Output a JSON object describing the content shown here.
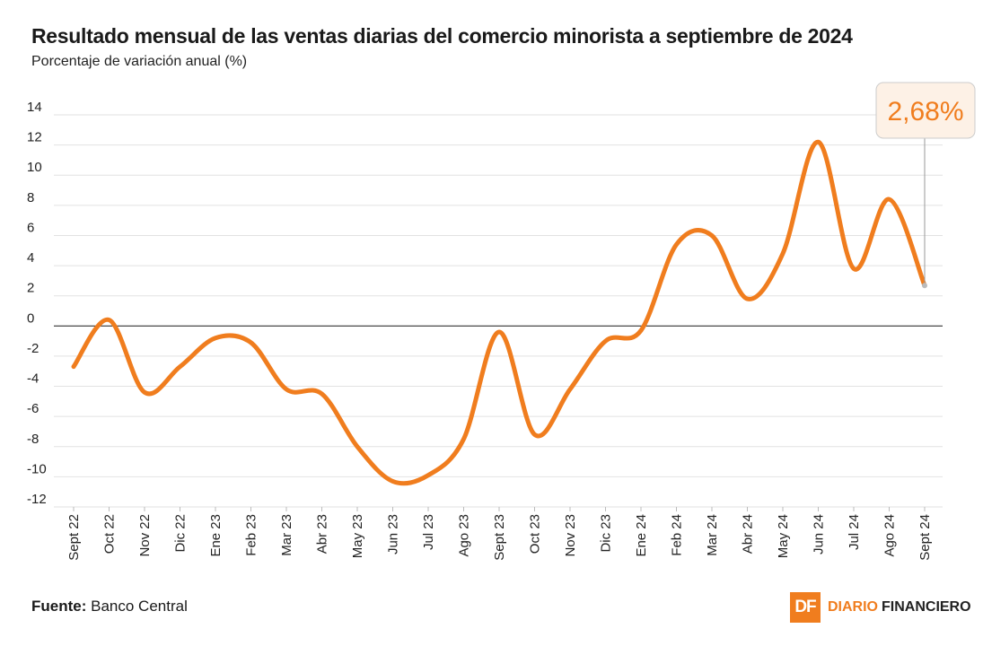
{
  "header": {
    "title": "Resultado mensual de las ventas diarias del comercio minorista a septiembre de 2024",
    "subtitle": "Porcentaje de variación anual (%)"
  },
  "footer": {
    "source_label": "Fuente:",
    "source_value": "Banco Central"
  },
  "brand": {
    "mark": "DF",
    "name_part1": "DIARIO",
    "name_part2": "FINANCIERO",
    "color": "#f07d1e"
  },
  "chart_data": {
    "type": "line",
    "categories": [
      "Sept 22",
      "Oct 22",
      "Nov 22",
      "Dic 22",
      "Ene 23",
      "Feb 23",
      "Mar 23",
      "Abr 23",
      "May 23",
      "Jun 23",
      "Jul 23",
      "Ago 23",
      "Sept 23",
      "Oct 23",
      "Nov 23",
      "Dic 23",
      "Ene 24",
      "Feb 24",
      "Mar 24",
      "Abr 24",
      "May 24",
      "Jun 24",
      "Jul 24",
      "Ago 24",
      "Sept 24"
    ],
    "series": [
      {
        "values": [
          -2.7,
          0.4,
          -4.4,
          -2.7,
          -0.8,
          -1.1,
          -4.2,
          -4.5,
          -8.0,
          -10.3,
          -9.9,
          -7.5,
          -0.4,
          -7.2,
          -4.2,
          -1.0,
          -0.3,
          5.4,
          6.0,
          1.8,
          4.8,
          12.2,
          3.8,
          8.4,
          2.68
        ]
      }
    ],
    "yticks": [
      14,
      12,
      10,
      8,
      6,
      4,
      2,
      0,
      -2,
      -4,
      -6,
      -8,
      -10,
      -12
    ],
    "ylim": [
      -12,
      14
    ],
    "line_color": "#f07d1e",
    "grid": true,
    "annotation": {
      "text": "2,68%",
      "category": "Sept 24"
    }
  }
}
